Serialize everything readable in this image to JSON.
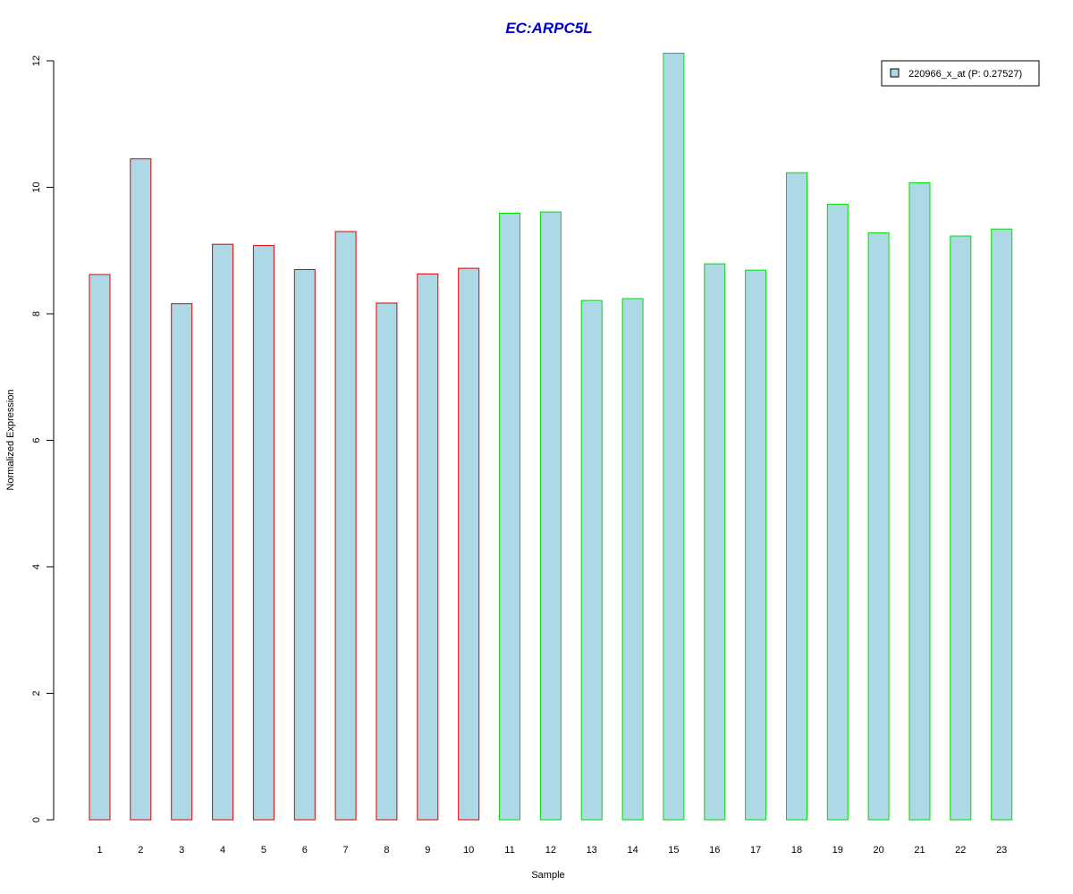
{
  "chart_data": {
    "type": "bar",
    "title": "EC:ARPC5L",
    "xlabel": "Sample",
    "ylabel": "Normalized Expression",
    "categories": [
      "1",
      "2",
      "3",
      "4",
      "5",
      "6",
      "7",
      "8",
      "9",
      "10",
      "11",
      "12",
      "13",
      "14",
      "15",
      "16",
      "17",
      "18",
      "19",
      "20",
      "21",
      "22",
      "23"
    ],
    "series": [
      {
        "name": "220966_x_at (P: 0.27527)",
        "values": [
          8.62,
          10.45,
          8.16,
          9.1,
          9.08,
          8.7,
          9.3,
          8.17,
          8.63,
          8.72,
          9.59,
          9.61,
          8.21,
          8.24,
          12.12,
          8.79,
          8.69,
          10.23,
          9.73,
          9.28,
          10.07,
          9.23,
          9.34
        ]
      }
    ],
    "group_border_colors": [
      "#e00000",
      "#e00000",
      "#e00000",
      "#e00000",
      "#e00000",
      "#e00000",
      "#e00000",
      "#e00000",
      "#e00000",
      "#e00000",
      "#00dd00",
      "#00dd00",
      "#00dd00",
      "#00dd00",
      "#00dd00",
      "#00dd00",
      "#00dd00",
      "#00dd00",
      "#00dd00",
      "#00dd00",
      "#00dd00",
      "#00dd00",
      "#00dd00"
    ],
    "bar_fill": "#add8e6",
    "title_color": "#0000cc",
    "ylim": [
      0,
      12
    ],
    "yticks": [
      0,
      2,
      4,
      6,
      8,
      10,
      12
    ],
    "grid": false,
    "legend_position": "top-right"
  }
}
